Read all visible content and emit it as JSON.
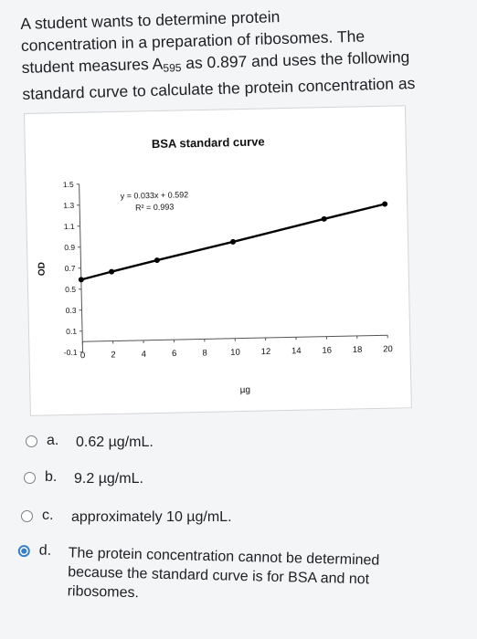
{
  "question": {
    "line1": "A student wants to determine protein",
    "line2": "concentration in a preparation of ribosomes. The",
    "line3_pre": "student measures A",
    "line3_sub": "595",
    "line3_post": " as 0.897 and uses the following",
    "line4": "standard curve to calculate the protein concentration as"
  },
  "chart_data": {
    "type": "line",
    "title": "BSA standard curve",
    "xlabel": "µg",
    "ylabel": "OD",
    "x_ticks": [
      0,
      2,
      4,
      6,
      8,
      10,
      12,
      14,
      16,
      18,
      20
    ],
    "y_ticks": [
      -0.1,
      0.1,
      0.3,
      0.5,
      0.7,
      0.9,
      1.1,
      1.3,
      1.5
    ],
    "y_tick_labels": [
      "-0.1",
      "0.1",
      "0.3",
      "0.5",
      "0.7",
      "0.9",
      "1.1",
      "1.3",
      "1.5"
    ],
    "xlim": [
      0,
      20
    ],
    "ylim": [
      -0.1,
      1.5
    ],
    "equation": "y = 0.033x + 0.592",
    "r_squared": "R² = 0.993",
    "series": [
      {
        "x": [
          0,
          2,
          5,
          10,
          16,
          20
        ],
        "y": [
          0.59,
          0.66,
          0.76,
          0.92,
          1.12,
          1.25
        ]
      }
    ],
    "colors": {
      "line": "#000000",
      "grid": "none"
    }
  },
  "options": [
    {
      "letter": "a.",
      "text": "0.62 µg/mL.",
      "selected": false
    },
    {
      "letter": "b.",
      "text": "9.2 µg/mL.",
      "selected": false
    },
    {
      "letter": "c.",
      "text": "approximately 10 µg/mL.",
      "selected": false
    },
    {
      "letter": "d.",
      "text_line1": "The protein concentration cannot be determined",
      "text_line2": "because the standard curve is for BSA and not",
      "text_line3": "ribosomes.",
      "selected": true
    }
  ]
}
